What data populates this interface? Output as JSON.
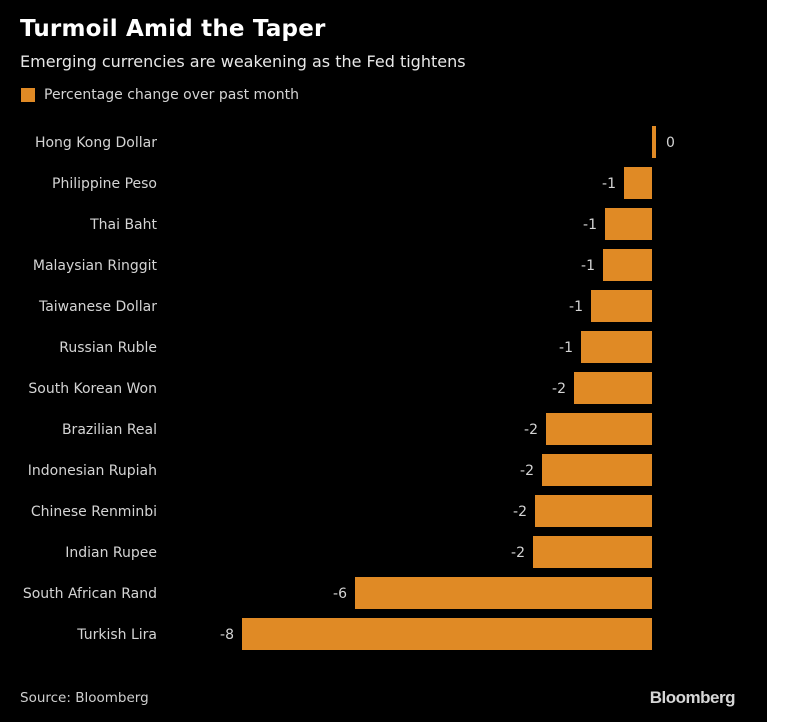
{
  "header": {
    "title": "Turmoil Amid the Taper",
    "subtitle": "Emerging currencies are weakening as the Fed tightens"
  },
  "legend": {
    "label": "Percentage change over past month"
  },
  "footer": {
    "source": "Source: Bloomberg",
    "logo": "Bloomberg"
  },
  "colors": {
    "bar": "#e08a25",
    "background": "#000000",
    "label": "#d4d4d4"
  },
  "chart_data": {
    "type": "bar",
    "orientation": "horizontal",
    "title": "Turmoil Amid the Taper",
    "subtitle": "Emerging currencies are weakening as the Fed tightens",
    "xlabel": "",
    "ylabel": "",
    "xlim": [
      -8.5,
      0.5
    ],
    "grid": false,
    "legend_position": "top-left",
    "categories": [
      "Hong Kong Dollar",
      "Philippine Peso",
      "Thai Baht",
      "Malaysian Ringgit",
      "Taiwanese Dollar",
      "Russian Ruble",
      "South Korean Won",
      "Brazilian Real",
      "Indonesian Rupiah",
      "Chinese Renminbi",
      "Indian Rupee",
      "South African Rand",
      "Turkish Lira"
    ],
    "series": [
      {
        "name": "Percentage change over past month",
        "values": [
          0.08,
          -0.56,
          -0.94,
          -0.98,
          -1.22,
          -1.42,
          -1.56,
          -2.12,
          -2.2,
          -2.34,
          -2.38,
          -5.94,
          -8.2
        ],
        "labels": [
          "0",
          "-1",
          "-1",
          "-1",
          "-1",
          "-1",
          "-2",
          "-2",
          "-2",
          "-2",
          "-2",
          "-6",
          "-8"
        ]
      }
    ]
  }
}
